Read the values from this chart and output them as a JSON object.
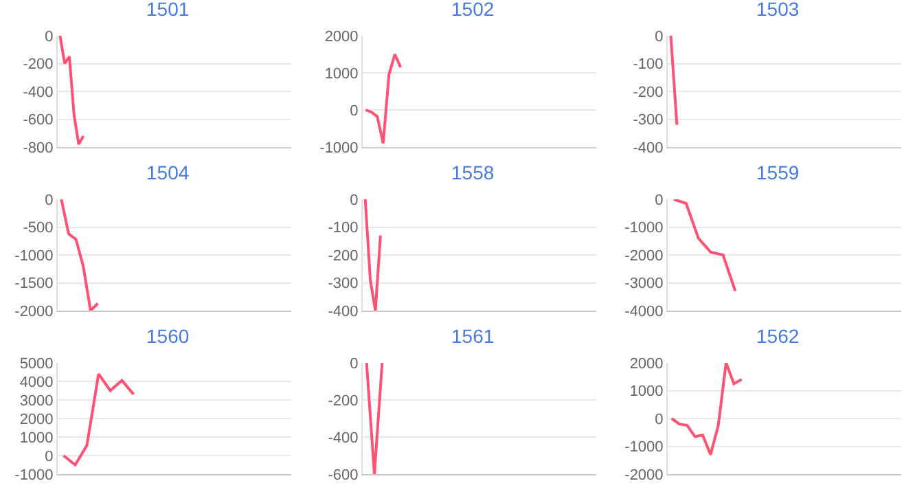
{
  "chart_data": [
    {
      "type": "line",
      "title": "1501",
      "categories": [
        null,
        null,
        null,
        null,
        null,
        null,
        null,
        null,
        null,
        null,
        null,
        null,
        null,
        null,
        null,
        null,
        null,
        null,
        null,
        null,
        null,
        null,
        null,
        null,
        null,
        null,
        null,
        null,
        null,
        null,
        null,
        null,
        null,
        null,
        null,
        null,
        null,
        null,
        null,
        null,
        null,
        null,
        null,
        null,
        null,
        null,
        null,
        null,
        null,
        null
      ],
      "series": [
        {
          "color": "#ff5273",
          "values": [
            0,
            -200,
            -150,
            -570,
            -780,
            -720,
            null,
            null,
            null,
            null,
            null,
            null,
            null,
            null,
            null,
            null,
            null,
            null,
            null,
            null,
            null,
            null,
            null,
            null,
            null,
            null,
            null,
            null,
            null,
            null,
            null,
            null,
            null,
            null,
            null,
            null,
            null,
            null,
            null,
            null,
            null,
            null,
            null,
            null,
            null,
            null,
            null,
            null,
            null,
            null
          ]
        }
      ],
      "ylim": [
        -800,
        0
      ],
      "yticks": [
        -800,
        -600,
        -400,
        -200,
        0
      ],
      "grid": "y",
      "tick_labels": "y",
      "marker": "none",
      "line_style": "solid"
    },
    {
      "type": "line",
      "title": "1502",
      "categories": [
        null,
        null,
        null,
        null,
        null,
        null,
        null,
        null,
        null,
        null,
        null,
        null,
        null,
        null,
        null,
        null,
        null,
        null,
        null,
        null,
        null,
        null,
        null,
        null,
        null,
        null,
        null,
        null,
        null,
        null,
        null,
        null,
        null,
        null,
        null,
        null,
        null,
        null,
        null,
        null
      ],
      "series": [
        {
          "color": "#ff5273",
          "values": [
            0,
            -60,
            -180,
            -900,
            950,
            1500,
            1150,
            null,
            null,
            null,
            null,
            null,
            null,
            null,
            null,
            null,
            null,
            null,
            null,
            null,
            null,
            null,
            null,
            null,
            null,
            null,
            null,
            null,
            null,
            null,
            null,
            null,
            null,
            null,
            null,
            null,
            null,
            null,
            null,
            null
          ]
        }
      ],
      "ylim": [
        -1000,
        2000
      ],
      "yticks": [
        -1000,
        0,
        1000,
        2000
      ],
      "grid": "y",
      "tick_labels": "y",
      "marker": "none",
      "line_style": "solid"
    },
    {
      "type": "line",
      "title": "1503",
      "categories": [
        null,
        null,
        null,
        null,
        null,
        null,
        null,
        null,
        null,
        null,
        null,
        null,
        null,
        null,
        null,
        null,
        null,
        null,
        null,
        null,
        null,
        null,
        null,
        null,
        null,
        null,
        null,
        null,
        null,
        null,
        null,
        null,
        null,
        null,
        null,
        null,
        null,
        null
      ],
      "series": [
        {
          "color": "#ff5273",
          "values": [
            0,
            -320,
            null,
            null,
            null,
            null,
            null,
            null,
            null,
            null,
            null,
            null,
            null,
            null,
            null,
            null,
            null,
            null,
            null,
            null,
            null,
            null,
            null,
            null,
            null,
            null,
            null,
            null,
            null,
            null,
            null,
            null,
            null,
            null,
            null,
            null,
            null,
            null
          ]
        }
      ],
      "ylim": [
        -400,
        0
      ],
      "yticks": [
        -400,
        -300,
        -200,
        -100,
        0
      ],
      "grid": "y",
      "tick_labels": "y",
      "marker": "none",
      "line_style": "solid"
    },
    {
      "type": "line",
      "title": "1504",
      "categories": [
        null,
        null,
        null,
        null,
        null,
        null,
        null,
        null,
        null,
        null,
        null,
        null,
        null,
        null,
        null,
        null,
        null,
        null,
        null,
        null,
        null,
        null,
        null,
        null,
        null,
        null,
        null,
        null,
        null,
        null,
        null,
        null
      ],
      "series": [
        {
          "color": "#ff5273",
          "values": [
            0,
            -620,
            -720,
            -1200,
            -2000,
            -1870,
            null,
            null,
            null,
            null,
            null,
            null,
            null,
            null,
            null,
            null,
            null,
            null,
            null,
            null,
            null,
            null,
            null,
            null,
            null,
            null,
            null,
            null,
            null,
            null,
            null,
            null
          ]
        }
      ],
      "ylim": [
        -2000,
        0
      ],
      "yticks": [
        -2000,
        -1500,
        -1000,
        -500,
        0
      ],
      "grid": "y",
      "tick_labels": "y",
      "marker": "none",
      "line_style": "solid"
    },
    {
      "type": "line",
      "title": "1558",
      "categories": [
        null,
        null,
        null,
        null,
        null,
        null,
        null,
        null,
        null,
        null,
        null,
        null,
        null,
        null,
        null,
        null,
        null,
        null,
        null,
        null,
        null,
        null,
        null,
        null,
        null,
        null,
        null,
        null,
        null,
        null,
        null,
        null,
        null,
        null,
        null,
        null,
        null,
        null,
        null,
        null,
        null,
        null,
        null,
        null,
        null,
        null
      ],
      "series": [
        {
          "color": "#ff5273",
          "values": [
            0,
            -290,
            -400,
            -130,
            null,
            null,
            null,
            null,
            null,
            null,
            null,
            null,
            null,
            null,
            null,
            null,
            null,
            null,
            null,
            null,
            null,
            null,
            null,
            null,
            null,
            null,
            null,
            null,
            null,
            null,
            null,
            null,
            null,
            null,
            null,
            null,
            null,
            null,
            null,
            null,
            null,
            null,
            null,
            null,
            null,
            null
          ]
        }
      ],
      "ylim": [
        -400,
        0
      ],
      "yticks": [
        -400,
        -300,
        -200,
        -100,
        0
      ],
      "grid": "y",
      "tick_labels": "y",
      "marker": "none",
      "line_style": "solid"
    },
    {
      "type": "line",
      "title": "1559",
      "categories": [
        null,
        null,
        null,
        null,
        null,
        null,
        null,
        null,
        null,
        null,
        null,
        null,
        null,
        null,
        null,
        null,
        null,
        null,
        null
      ],
      "series": [
        {
          "color": "#ff5273",
          "values": [
            0,
            -150,
            -1400,
            -1900,
            -2000,
            -3300,
            null,
            null,
            null,
            null,
            null,
            null,
            null,
            null,
            null,
            null,
            null,
            null,
            null
          ]
        }
      ],
      "ylim": [
        -4000,
        0
      ],
      "yticks": [
        -4000,
        -3000,
        -2000,
        -1000,
        0
      ],
      "grid": "y",
      "tick_labels": "y",
      "marker": "none",
      "line_style": "solid"
    },
    {
      "type": "line",
      "title": "1560",
      "categories": [
        null,
        null,
        null,
        null,
        null,
        null,
        null,
        null,
        null,
        null,
        null,
        null,
        null,
        null,
        null,
        null,
        null,
        null,
        null,
        null
      ],
      "series": [
        {
          "color": "#ff5273",
          "values": [
            0,
            -500,
            550,
            4400,
            3500,
            4050,
            3300,
            null,
            null,
            null,
            null,
            null,
            null,
            null,
            null,
            null,
            null,
            null,
            null,
            null
          ]
        }
      ],
      "ylim": [
        -1000,
        5000
      ],
      "yticks": [
        -1000,
        0,
        1000,
        2000,
        3000,
        4000,
        5000
      ],
      "grid": "y",
      "tick_labels": "y",
      "marker": "none",
      "line_style": "solid"
    },
    {
      "type": "line",
      "title": "1561",
      "categories": [
        null,
        null,
        null,
        null,
        null,
        null,
        null,
        null,
        null,
        null,
        null,
        null,
        null,
        null,
        null,
        null,
        null,
        null,
        null,
        null,
        null,
        null,
        null,
        null,
        null,
        null,
        null,
        null,
        null,
        null
      ],
      "series": [
        {
          "color": "#ff5273",
          "values": [
            0,
            -600,
            0,
            null,
            null,
            null,
            null,
            null,
            null,
            null,
            null,
            null,
            null,
            null,
            null,
            null,
            null,
            null,
            null,
            null,
            null,
            null,
            null,
            null,
            null,
            null,
            null,
            null,
            null,
            null
          ]
        }
      ],
      "ylim": [
        -600,
        0
      ],
      "yticks": [
        -600,
        -400,
        -200,
        0
      ],
      "grid": "y",
      "tick_labels": "y",
      "marker": "none",
      "line_style": "solid"
    },
    {
      "type": "line",
      "title": "1562",
      "categories": [
        null,
        null,
        null,
        null,
        null,
        null,
        null,
        null,
        null,
        null,
        null,
        null,
        null,
        null,
        null,
        null,
        null,
        null,
        null,
        null,
        null,
        null,
        null,
        null,
        null,
        null,
        null,
        null,
        null,
        null
      ],
      "series": [
        {
          "color": "#ff5273",
          "values": [
            0,
            -200,
            -250,
            -650,
            -600,
            -1300,
            -250,
            2000,
            1250,
            1400,
            null,
            null,
            null,
            null,
            null,
            null,
            null,
            null,
            null,
            null,
            null,
            null,
            null,
            null,
            null,
            null,
            null,
            null,
            null,
            null
          ]
        }
      ],
      "ylim": [
        -2000,
        2000
      ],
      "yticks": [
        -2000,
        -1000,
        0,
        1000,
        2000
      ],
      "grid": "y",
      "tick_labels": "y",
      "marker": "none",
      "line_style": "solid"
    }
  ]
}
